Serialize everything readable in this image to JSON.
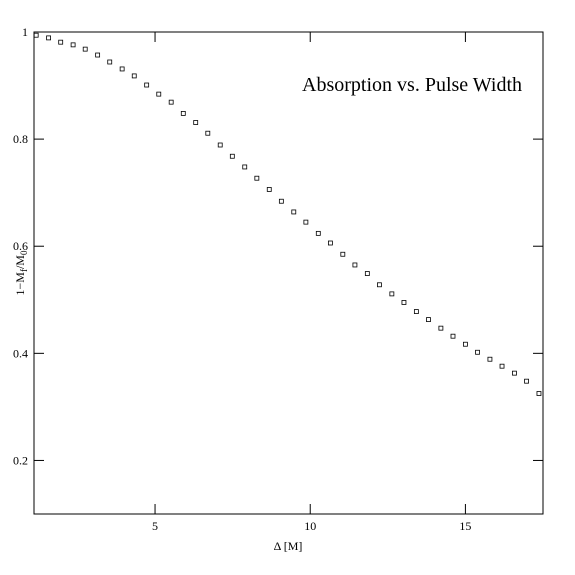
{
  "chart_data": {
    "type": "scatter",
    "title": "Absorption vs. Pulse Width",
    "xlabel": "Δ [M]",
    "ylabel": [
      "1−M",
      "f",
      "/M",
      "0"
    ],
    "x": [
      1.17,
      1.57,
      1.96,
      2.36,
      2.75,
      3.15,
      3.54,
      3.94,
      4.33,
      4.73,
      5.12,
      5.52,
      5.91,
      6.31,
      6.7,
      7.1,
      7.49,
      7.89,
      8.28,
      8.68,
      9.07,
      9.47,
      9.86,
      10.26,
      10.65,
      11.05,
      11.44,
      11.84,
      12.23,
      12.63,
      13.02,
      13.42,
      13.81,
      14.21,
      14.6,
      15.0,
      15.39,
      15.79,
      16.18,
      16.58,
      16.97,
      17.37
    ],
    "values": [
      0.994,
      0.989,
      0.981,
      0.976,
      0.968,
      0.957,
      0.944,
      0.931,
      0.918,
      0.901,
      0.884,
      0.869,
      0.848,
      0.831,
      0.811,
      0.789,
      0.768,
      0.748,
      0.727,
      0.706,
      0.684,
      0.664,
      0.645,
      0.624,
      0.606,
      0.585,
      0.565,
      0.549,
      0.528,
      0.511,
      0.495,
      0.478,
      0.463,
      0.447,
      0.432,
      0.417,
      0.402,
      0.389,
      0.376,
      0.363,
      0.348,
      0.325
    ],
    "color": "#000000",
    "xlim": [
      1.1,
      17.5
    ],
    "xticks": [
      5,
      10,
      15
    ],
    "ylim": [
      0.1,
      1
    ],
    "yticks": [
      0.2,
      0.4,
      0.6,
      0.8,
      1
    ],
    "grid": false
  }
}
